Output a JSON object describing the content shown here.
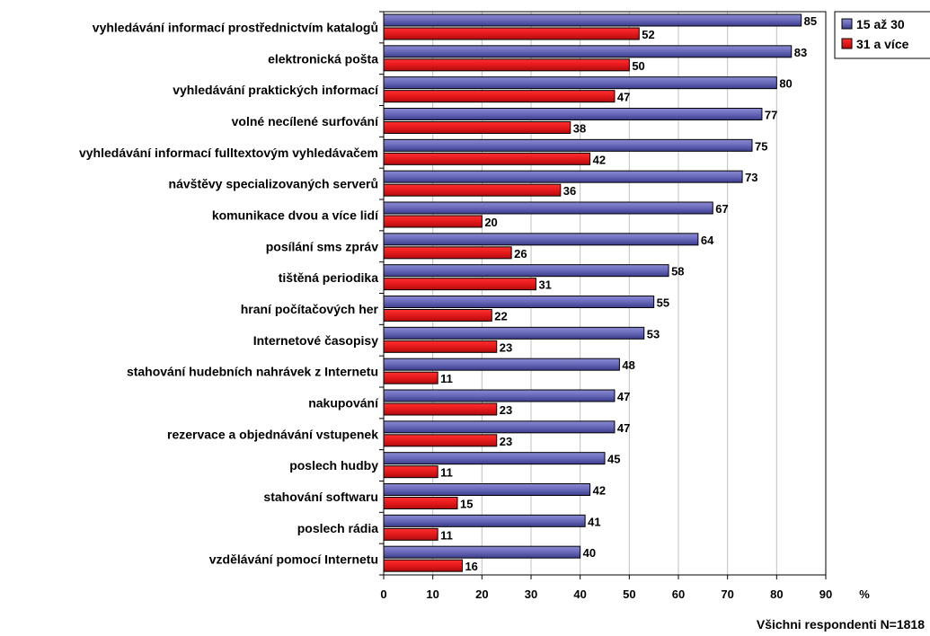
{
  "chart_data": {
    "type": "bar",
    "orientation": "horizontal",
    "categories": [
      "vyhledávání informací prostřednictvím katalogů",
      "elektronická pošta",
      "vyhledávání praktických informací",
      "volné necílené surfování",
      "vyhledávání informací fulltextovým vyhledávačem",
      "návštěvy specializovaných serverů",
      "komunikace dvou a více lidí",
      "posílání sms zpráv",
      "tištěná periodika",
      "hraní počítačových her",
      "Internetové časopisy",
      "stahování hudebních nahrávek z Internetu",
      "nakupování",
      "rezervace a objednávání vstupenek",
      "poslech hudby",
      "stahování softwaru",
      "poslech rádia",
      "vzdělávání pomocí Internetu"
    ],
    "series": [
      {
        "name": "15 až 30",
        "color": "#5b5ba8",
        "values": [
          85,
          83,
          80,
          77,
          75,
          73,
          67,
          64,
          58,
          55,
          53,
          48,
          47,
          47,
          45,
          42,
          41,
          40
        ]
      },
      {
        "name": "31 a více",
        "color": "#e4191b",
        "values": [
          52,
          50,
          47,
          38,
          42,
          36,
          20,
          26,
          31,
          22,
          23,
          11,
          23,
          23,
          11,
          15,
          11,
          16
        ]
      }
    ],
    "xlim": [
      0,
      90
    ],
    "xticks": [
      0,
      10,
      20,
      30,
      40,
      50,
      60,
      70,
      80,
      90
    ],
    "xunit": "%",
    "grid": "vertical",
    "legend": "top-right",
    "footnote": "Všichni respondenti N=1818"
  }
}
